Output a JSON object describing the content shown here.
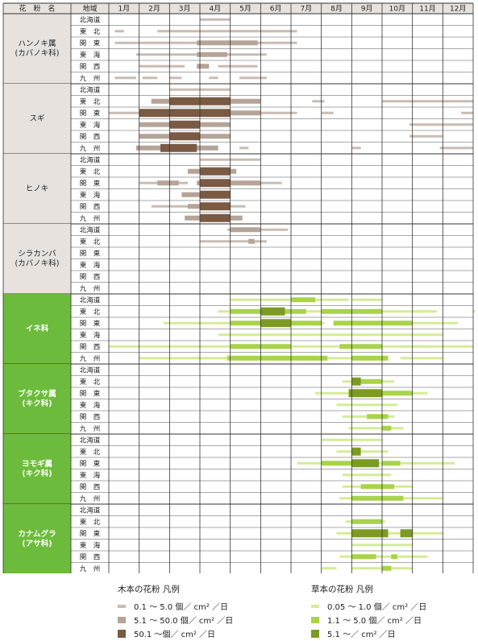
{
  "header": {
    "name": "花　粉　名",
    "region": "地域"
  },
  "months": [
    "1月",
    "2月",
    "3月",
    "4月",
    "5月",
    "6月",
    "7月",
    "8月",
    "9月",
    "10月",
    "11月",
    "12月"
  ],
  "regions": [
    "北海道",
    "東　北",
    "関　東",
    "東　海",
    "関　西",
    "九　州"
  ],
  "colors": {
    "tree_light": "#c9bcb3",
    "tree_mid": "#b5a497",
    "tree_dark": "#7a5a43",
    "herb_light": "#d4ec96",
    "herb_mid": "#a9d34a",
    "herb_dark": "#7d9b23",
    "tree_bg": "#e7e2de",
    "herb_bg": "#6dbb3c",
    "grid": "#555555"
  },
  "chart_data": {
    "type": "table",
    "note": "Pollen calendar. Each segment: [start_month, end_month, level] where month is fractional (1.0 = start of Jan, 13.0 = end of Dec); level 1=light, 2=mid, 3=dark.",
    "groups": [
      {
        "name": [
          "ハンノキ属",
          "(カバノキ科)"
        ],
        "kind": "tree",
        "rows": [
          [
            [
              4.0,
              5.0,
              1
            ]
          ],
          [
            [
              1.2,
              1.5,
              1
            ],
            [
              2.6,
              7.2,
              1
            ]
          ],
          [
            [
              1.2,
              7.2,
              1
            ],
            [
              3.9,
              5.9,
              2
            ]
          ],
          [
            [
              1.9,
              6.2,
              1
            ],
            [
              3.9,
              4.9,
              2
            ]
          ],
          [
            [
              2.0,
              3.5,
              1
            ],
            [
              3.9,
              4.3,
              2
            ],
            [
              4.6,
              5.9,
              1
            ]
          ],
          [
            [
              1.2,
              1.9,
              1
            ],
            [
              2.1,
              2.6,
              1
            ],
            [
              3.0,
              3.4,
              1
            ],
            [
              4.3,
              4.6,
              1
            ],
            [
              5.3,
              6.2,
              1
            ]
          ]
        ]
      },
      {
        "name": [
          "スギ"
        ],
        "kind": "tree",
        "rows": [
          [
            [
              3.0,
              5.0,
              1
            ]
          ],
          [
            [
              2.4,
              6.0,
              2
            ],
            [
              3.0,
              5.0,
              3
            ],
            [
              7.7,
              8.1,
              1
            ],
            [
              10.0,
              13.0,
              1
            ]
          ],
          [
            [
              1.0,
              7.2,
              1
            ],
            [
              2.0,
              5.0,
              3
            ],
            [
              5.0,
              6.0,
              2
            ],
            [
              8.0,
              8.4,
              1
            ],
            [
              12.6,
              13.0,
              1
            ]
          ],
          [
            [
              2.0,
              5.0,
              2
            ],
            [
              3.0,
              4.0,
              3
            ],
            [
              10.9,
              13.0,
              1
            ]
          ],
          [
            [
              2.0,
              5.0,
              2
            ],
            [
              3.0,
              4.0,
              3
            ],
            [
              10.9,
              12.0,
              1
            ]
          ],
          [
            [
              1.9,
              4.6,
              2
            ],
            [
              2.7,
              3.9,
              3
            ],
            [
              5.3,
              5.6,
              1
            ],
            [
              9.0,
              9.3,
              1
            ],
            [
              11.9,
              13.0,
              1
            ]
          ]
        ]
      },
      {
        "name": [
          "ヒノキ"
        ],
        "kind": "tree",
        "rows": [
          [
            [
              4.0,
              6.0,
              1
            ]
          ],
          [
            [
              3.6,
              5.2,
              2
            ],
            [
              4.0,
              5.0,
              3
            ]
          ],
          [
            [
              2.0,
              3.6,
              1
            ],
            [
              2.6,
              3.3,
              2
            ],
            [
              3.9,
              6.0,
              2
            ],
            [
              4.0,
              5.0,
              3
            ],
            [
              6.0,
              6.7,
              1
            ]
          ],
          [
            [
              3.4,
              4.7,
              2
            ],
            [
              4.0,
              5.0,
              3
            ]
          ],
          [
            [
              2.4,
              5.5,
              1
            ],
            [
              3.6,
              4.6,
              2
            ],
            [
              4.0,
              5.0,
              3
            ]
          ],
          [
            [
              3.5,
              5.4,
              2
            ],
            [
              4.0,
              5.0,
              3
            ]
          ]
        ]
      },
      {
        "name": [
          "シラカンバ",
          "(カバノキ科)"
        ],
        "kind": "tree",
        "rows": [
          [
            [
              4.9,
              6.9,
              1
            ],
            [
              5.0,
              6.0,
              2
            ]
          ],
          [
            [
              4.0,
              6.2,
              1
            ],
            [
              5.6,
              5.8,
              2
            ]
          ],
          [],
          [],
          [],
          []
        ]
      },
      {
        "name": [
          "イネ科"
        ],
        "kind": "herb",
        "rows": [
          [
            [
              5.0,
              8.9,
              1
            ],
            [
              7.0,
              7.8,
              2
            ],
            [
              9.0,
              10.0,
              1
            ]
          ],
          [
            [
              4.6,
              6.5,
              1
            ],
            [
              5.0,
              7.5,
              2
            ],
            [
              6.0,
              6.8,
              3
            ],
            [
              7.5,
              11.5,
              1
            ],
            [
              8.0,
              10.0,
              2
            ],
            [
              11.0,
              11.8,
              1
            ],
            [
              13.0,
              13.0,
              1
            ]
          ],
          [
            [
              2.8,
              6.0,
              1
            ],
            [
              5.0,
              8.0,
              2
            ],
            [
              6.0,
              7.0,
              3
            ],
            [
              8.4,
              11.0,
              2
            ],
            [
              11.0,
              12.5,
              1
            ],
            [
              7.6,
              8.1,
              1
            ]
          ],
          [
            [
              4.6,
              12.0,
              1
            ]
          ],
          [
            [
              1.0,
              13.0,
              1
            ],
            [
              5.0,
              7.0,
              2
            ],
            [
              8.6,
              10.0,
              2
            ],
            [
              10.6,
              11.5,
              1
            ]
          ],
          [
            [
              2.0,
              6.0,
              1
            ],
            [
              4.9,
              8.2,
              2
            ],
            [
              6.0,
              9.0,
              1
            ],
            [
              9.0,
              10.2,
              2
            ],
            [
              10.6,
              11.5,
              1
            ],
            [
              11.5,
              12.0,
              1
            ]
          ]
        ]
      },
      {
        "name": [
          "ブタクサ属",
          "(キク科)"
        ],
        "kind": "herb",
        "rows": [
          [],
          [
            [
              8.7,
              10.4,
              1
            ],
            [
              9.0,
              9.3,
              3
            ],
            [
              9.2,
              10.0,
              2
            ]
          ],
          [
            [
              7.8,
              11.5,
              1
            ],
            [
              8.9,
              10.0,
              3
            ],
            [
              9.0,
              11.0,
              2
            ]
          ],
          [
            [
              8.5,
              10.5,
              1
            ]
          ],
          [
            [
              8.7,
              10.4,
              1
            ],
            [
              9.5,
              10.2,
              2
            ]
          ],
          [
            [
              8.9,
              10.7,
              1
            ],
            [
              10.0,
              10.3,
              2
            ]
          ]
        ]
      },
      {
        "name": [
          "ヨモギ属",
          "(キク科)"
        ],
        "kind": "herb",
        "rows": [
          [
            [
              8.0,
              10.0,
              1
            ]
          ],
          [
            [
              8.5,
              10.2,
              1
            ],
            [
              9.0,
              9.3,
              3
            ]
          ],
          [
            [
              7.2,
              12.4,
              1
            ],
            [
              8.0,
              9.0,
              2
            ],
            [
              9.0,
              9.9,
              3
            ],
            [
              10.0,
              10.6,
              2
            ]
          ],
          [
            [
              8.7,
              10.3,
              1
            ]
          ],
          [
            [
              8.7,
              11.0,
              1
            ],
            [
              9.3,
              10.4,
              2
            ]
          ],
          [
            [
              8.6,
              12.0,
              1
            ],
            [
              9.0,
              10.7,
              2
            ]
          ]
        ]
      },
      {
        "name": [
          "カナムグラ",
          "(アサ科)"
        ],
        "kind": "herb",
        "rows": [
          [],
          [
            [
              8.8,
              10.1,
              1
            ],
            [
              9.0,
              10.0,
              2
            ]
          ],
          [
            [
              8.5,
              12.0,
              1
            ],
            [
              9.0,
              10.2,
              3
            ],
            [
              10.6,
              11.0,
              3
            ]
          ],
          [
            [
              9.0,
              11.0,
              1
            ]
          ],
          [
            [
              8.6,
              11.5,
              1
            ],
            [
              9.0,
              9.8,
              2
            ],
            [
              10.3,
              10.5,
              2
            ]
          ],
          [
            [
              8.0,
              8.5,
              1
            ],
            [
              9.0,
              11.0,
              1
            ],
            [
              10.0,
              10.3,
              2
            ]
          ]
        ]
      }
    ]
  },
  "legend": {
    "tree": {
      "title": "木本の花粉 凡例",
      "items": [
        "0.1 ～ 5.0 個／ cm² ／日",
        "5.1 ～ 50.0 個／ cm² ／日",
        "50.1 ～個／ cm² ／日"
      ]
    },
    "herb": {
      "title": "草本の花粉 凡例",
      "items": [
        "0.05 ～ 1.0 個／ cm² ／日",
        "1.1 ～ 5.0 個／ cm² ／日",
        "5.1 ～／ cm² ／日"
      ]
    }
  }
}
